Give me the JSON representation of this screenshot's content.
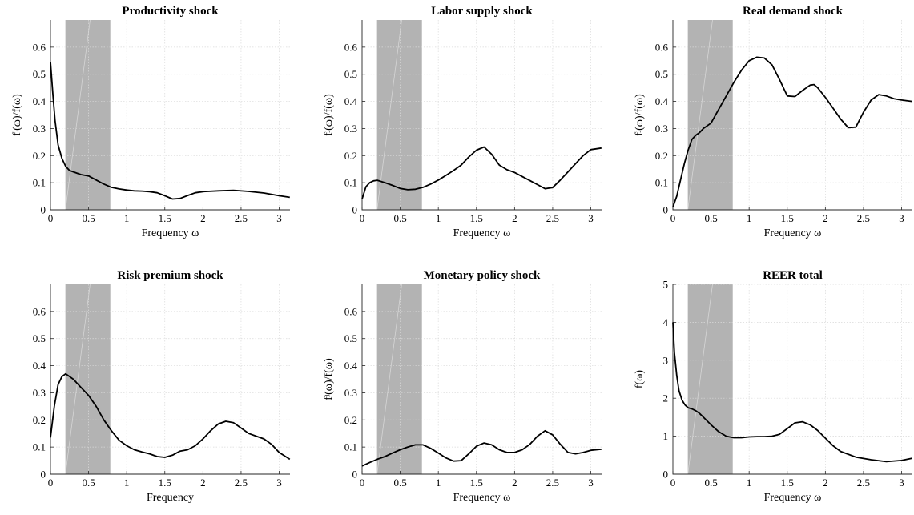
{
  "chart_data": [
    {
      "type": "line",
      "title": "Productivity shock",
      "xlabel": "Frequency ω",
      "ylabel": "fʲ(ω)/f(ω)",
      "xlim": [
        0,
        3.14159
      ],
      "ylim": [
        0,
        0.7
      ],
      "xticks": [
        "0",
        "0.5",
        "1",
        "1.5",
        "2",
        "2.5",
        "3"
      ],
      "yticks": [
        "0",
        "0.1",
        "0.2",
        "0.3",
        "0.4",
        "0.5",
        "0.6"
      ],
      "grid": true,
      "shaded_band": [
        0.196,
        0.785
      ],
      "x": [
        0,
        0.03,
        0.06,
        0.1,
        0.15,
        0.2,
        0.25,
        0.3,
        0.4,
        0.5,
        0.6,
        0.7,
        0.8,
        0.9,
        1.0,
        1.1,
        1.2,
        1.3,
        1.4,
        1.5,
        1.6,
        1.7,
        1.8,
        1.9,
        2.0,
        2.2,
        2.4,
        2.6,
        2.8,
        3.0,
        3.14
      ],
      "y": [
        0.545,
        0.43,
        0.33,
        0.24,
        0.19,
        0.16,
        0.145,
        0.14,
        0.13,
        0.125,
        0.11,
        0.095,
        0.083,
        0.077,
        0.073,
        0.07,
        0.069,
        0.067,
        0.063,
        0.052,
        0.04,
        0.042,
        0.053,
        0.063,
        0.067,
        0.07,
        0.072,
        0.068,
        0.062,
        0.052,
        0.046
      ]
    },
    {
      "type": "line",
      "title": "Labor supply shock",
      "xlabel": "Frequency ω",
      "ylabel": "fʲ(ω)/f(ω)",
      "xlim": [
        0,
        3.14159
      ],
      "ylim": [
        0,
        0.7
      ],
      "xticks": [
        "0",
        "0.5",
        "1",
        "1.5",
        "2",
        "2.5",
        "3"
      ],
      "yticks": [
        "0",
        "0.1",
        "0.2",
        "0.3",
        "0.4",
        "0.5",
        "0.6"
      ],
      "grid": true,
      "shaded_band": [
        0.196,
        0.785
      ],
      "x": [
        0,
        0.05,
        0.1,
        0.15,
        0.2,
        0.3,
        0.4,
        0.5,
        0.6,
        0.7,
        0.8,
        0.9,
        1.0,
        1.1,
        1.2,
        1.3,
        1.4,
        1.5,
        1.6,
        1.7,
        1.8,
        1.9,
        2.0,
        2.1,
        2.2,
        2.3,
        2.4,
        2.5,
        2.6,
        2.7,
        2.8,
        2.9,
        3.0,
        3.14
      ],
      "y": [
        0.04,
        0.085,
        0.1,
        0.107,
        0.109,
        0.1,
        0.09,
        0.079,
        0.074,
        0.076,
        0.083,
        0.095,
        0.11,
        0.127,
        0.145,
        0.165,
        0.195,
        0.22,
        0.232,
        0.205,
        0.165,
        0.148,
        0.138,
        0.123,
        0.108,
        0.093,
        0.078,
        0.082,
        0.11,
        0.14,
        0.17,
        0.2,
        0.222,
        0.228
      ]
    },
    {
      "type": "line",
      "title": "Real demand shock",
      "xlabel": "Frequency ω",
      "ylabel": "fʲ(ω)/f(ω)",
      "xlim": [
        0,
        3.14159
      ],
      "ylim": [
        0,
        0.7
      ],
      "xticks": [
        "0",
        "0.5",
        "1",
        "1.5",
        "2",
        "2.5",
        "3"
      ],
      "yticks": [
        "0",
        "0.1",
        "0.2",
        "0.3",
        "0.4",
        "0.5",
        "0.6"
      ],
      "grid": true,
      "shaded_band": [
        0.196,
        0.785
      ],
      "x": [
        0,
        0.05,
        0.1,
        0.15,
        0.2,
        0.25,
        0.3,
        0.35,
        0.4,
        0.5,
        0.6,
        0.7,
        0.8,
        0.9,
        1.0,
        1.1,
        1.2,
        1.3,
        1.4,
        1.5,
        1.6,
        1.7,
        1.8,
        1.85,
        1.9,
        2.0,
        2.1,
        2.2,
        2.3,
        2.4,
        2.5,
        2.6,
        2.7,
        2.8,
        2.9,
        3.0,
        3.14
      ],
      "y": [
        0.01,
        0.05,
        0.11,
        0.17,
        0.22,
        0.26,
        0.275,
        0.285,
        0.3,
        0.32,
        0.37,
        0.42,
        0.47,
        0.515,
        0.55,
        0.563,
        0.56,
        0.535,
        0.48,
        0.42,
        0.418,
        0.44,
        0.46,
        0.462,
        0.45,
        0.415,
        0.375,
        0.335,
        0.303,
        0.305,
        0.36,
        0.405,
        0.425,
        0.42,
        0.41,
        0.405,
        0.4
      ]
    },
    {
      "type": "line",
      "title": "Risk premium shock",
      "xlabel": "Frequency",
      "ylabel": "",
      "xlim": [
        0,
        3.14159
      ],
      "ylim": [
        0,
        0.7
      ],
      "xticks": [
        "0",
        "0.5",
        "1",
        "1.5",
        "2",
        "2.5",
        "3"
      ],
      "yticks": [
        "0",
        "0.1",
        "0.2",
        "0.3",
        "0.4",
        "0.5",
        "0.6"
      ],
      "grid": true,
      "shaded_band": [
        0.196,
        0.785
      ],
      "x": [
        0,
        0.05,
        0.1,
        0.15,
        0.2,
        0.3,
        0.4,
        0.5,
        0.6,
        0.7,
        0.8,
        0.9,
        1.0,
        1.1,
        1.2,
        1.3,
        1.4,
        1.5,
        1.6,
        1.7,
        1.8,
        1.9,
        2.0,
        2.1,
        2.2,
        2.3,
        2.4,
        2.5,
        2.6,
        2.7,
        2.8,
        2.9,
        3.0,
        3.14
      ],
      "y": [
        0.135,
        0.25,
        0.33,
        0.36,
        0.37,
        0.35,
        0.32,
        0.29,
        0.25,
        0.2,
        0.16,
        0.125,
        0.105,
        0.09,
        0.082,
        0.075,
        0.065,
        0.062,
        0.07,
        0.085,
        0.09,
        0.105,
        0.13,
        0.16,
        0.185,
        0.195,
        0.19,
        0.17,
        0.15,
        0.14,
        0.13,
        0.11,
        0.08,
        0.055
      ]
    },
    {
      "type": "line",
      "title": "Monetary policy shock",
      "xlabel": "Frequency ω",
      "ylabel": "fʲ(ω)/f(ω)",
      "xlim": [
        0,
        3.14159
      ],
      "ylim": [
        0,
        0.7
      ],
      "xticks": [
        "0",
        "0.5",
        "1",
        "1.5",
        "2",
        "2.5",
        "3"
      ],
      "yticks": [
        "0",
        "0.1",
        "0.2",
        "0.3",
        "0.4",
        "0.5",
        "0.6"
      ],
      "grid": true,
      "shaded_band": [
        0.196,
        0.785
      ],
      "x": [
        0,
        0.1,
        0.2,
        0.3,
        0.4,
        0.5,
        0.6,
        0.7,
        0.8,
        0.9,
        1.0,
        1.1,
        1.2,
        1.3,
        1.4,
        1.5,
        1.6,
        1.7,
        1.8,
        1.9,
        2.0,
        2.1,
        2.2,
        2.3,
        2.4,
        2.5,
        2.6,
        2.7,
        2.8,
        2.9,
        3.0,
        3.14
      ],
      "y": [
        0.03,
        0.043,
        0.055,
        0.065,
        0.078,
        0.09,
        0.1,
        0.108,
        0.108,
        0.095,
        0.078,
        0.06,
        0.048,
        0.05,
        0.075,
        0.103,
        0.115,
        0.108,
        0.09,
        0.08,
        0.08,
        0.09,
        0.11,
        0.14,
        0.16,
        0.145,
        0.11,
        0.08,
        0.075,
        0.08,
        0.088,
        0.092
      ]
    },
    {
      "type": "line",
      "title": "REER total",
      "xlabel": "Frequency ω",
      "ylabel": "f(ω)",
      "xlim": [
        0,
        3.14159
      ],
      "ylim": [
        0,
        5
      ],
      "xticks": [
        "0",
        "0.5",
        "1",
        "1.5",
        "2",
        "2.5",
        "3"
      ],
      "yticks": [
        "0",
        "1",
        "2",
        "3",
        "4",
        "5"
      ],
      "grid": true,
      "shaded_band": [
        0.196,
        0.785
      ],
      "x": [
        0,
        0.02,
        0.05,
        0.08,
        0.12,
        0.16,
        0.2,
        0.25,
        0.3,
        0.35,
        0.4,
        0.5,
        0.6,
        0.7,
        0.8,
        0.9,
        1.0,
        1.1,
        1.2,
        1.3,
        1.4,
        1.5,
        1.6,
        1.7,
        1.8,
        1.9,
        2.0,
        2.1,
        2.2,
        2.4,
        2.6,
        2.8,
        3.0,
        3.14
      ],
      "y": [
        4.0,
        3.2,
        2.6,
        2.2,
        1.95,
        1.82,
        1.75,
        1.72,
        1.67,
        1.6,
        1.5,
        1.3,
        1.12,
        1.0,
        0.96,
        0.96,
        0.98,
        0.99,
        0.99,
        1.0,
        1.05,
        1.2,
        1.35,
        1.38,
        1.3,
        1.15,
        0.95,
        0.75,
        0.6,
        0.45,
        0.38,
        0.33,
        0.36,
        0.42
      ]
    }
  ]
}
